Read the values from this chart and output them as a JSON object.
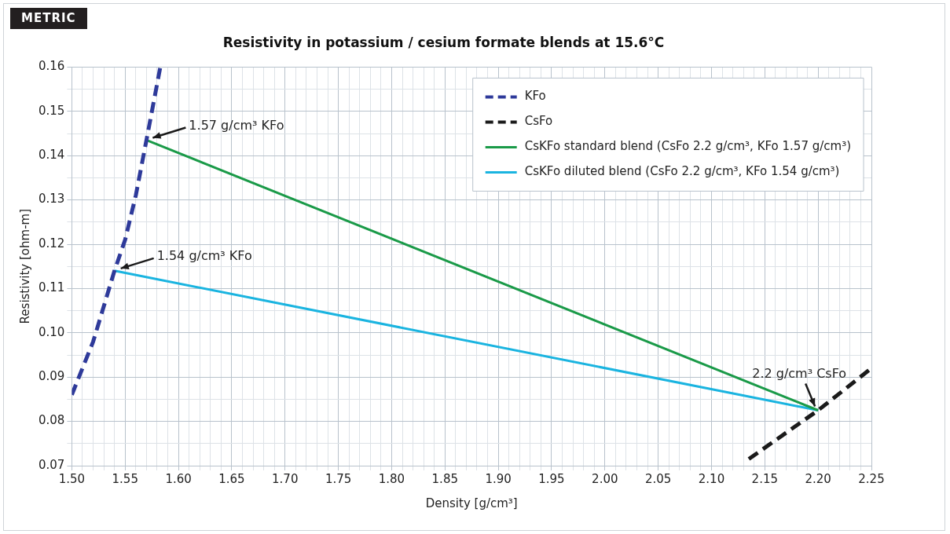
{
  "chart_data": {
    "type": "line",
    "title": "Resistivity in potassium / cesium formate blends at 15.6°C",
    "xlabel": "Density [g/cm³]",
    "ylabel": "Resistivity [ohm-m]",
    "annotations": [
      "METRIC",
      {
        "text": "1.57 g/cm³ KFo",
        "x": 1.57,
        "y": 0.1435
      },
      {
        "text": "1.54 g/cm³ KFo",
        "x": 1.54,
        "y": 0.114
      },
      {
        "text": "2.2 g/cm³ CsFo",
        "x": 2.2,
        "y": 0.0825
      }
    ],
    "series": [
      {
        "name": "KFo",
        "color": "#2e3a9a",
        "line_style": "dashed",
        "x": [
          1.5,
          1.52,
          1.54,
          1.55,
          1.56,
          1.57,
          1.583
        ],
        "values": [
          0.086,
          0.098,
          0.114,
          0.121,
          0.131,
          0.1435,
          0.16
        ]
      },
      {
        "name": "CsFo",
        "color": "#1a1a1a",
        "line_style": "dashed",
        "x": [
          2.135,
          2.2,
          2.25
        ],
        "values": [
          0.0715,
          0.0825,
          0.092
        ]
      },
      {
        "name": "CsKFo standard blend (CsFo 2.2 g/cm³, KFo 1.57 g/cm³)",
        "color": "#1a9a48",
        "line_style": "solid",
        "x": [
          1.57,
          2.2
        ],
        "values": [
          0.1435,
          0.0825
        ]
      },
      {
        "name": "CsKFo diluted blend (CsFo 2.2 g/cm³, KFo 1.54 g/cm³)",
        "color": "#1ab4e0",
        "line_style": "solid",
        "x": [
          1.54,
          2.2
        ],
        "values": [
          0.114,
          0.0825
        ]
      }
    ],
    "xlim": [
      1.5,
      2.25
    ],
    "xticks": [
      {
        "value": 1.5,
        "label": "1.50"
      },
      {
        "value": 1.51,
        "label": null
      },
      {
        "value": 1.52,
        "label": null
      },
      {
        "value": 1.53,
        "label": null
      },
      {
        "value": 1.54,
        "label": null
      },
      1.55,
      {
        "value": 1.56,
        "label": null
      },
      {
        "value": 1.57,
        "label": null
      },
      {
        "value": 1.58,
        "label": null
      },
      {
        "value": 1.59,
        "label": null
      },
      {
        "value": 1.6,
        "label": "1.60"
      },
      {
        "value": 1.61,
        "label": null
      },
      {
        "value": 1.62,
        "label": null
      },
      {
        "value": 1.63,
        "label": null
      },
      {
        "value": 1.64,
        "label": null
      },
      1.65,
      {
        "value": 1.66,
        "label": null
      },
      {
        "value": 1.67,
        "label": null
      },
      {
        "value": 1.68,
        "label": null
      },
      {
        "value": 1.69,
        "label": null
      },
      {
        "value": 1.7,
        "label": "1.70"
      },
      {
        "value": 1.71,
        "label": null
      },
      {
        "value": 1.72,
        "label": null
      },
      {
        "value": 1.73,
        "label": null
      },
      {
        "value": 1.74,
        "label": null
      },
      1.75,
      {
        "value": 1.76,
        "label": null
      },
      {
        "value": 1.77,
        "label": null
      },
      {
        "value": 1.78,
        "label": null
      },
      {
        "value": 1.79,
        "label": null
      },
      {
        "value": 1.8,
        "label": "1.80"
      },
      {
        "value": 1.81,
        "label": null
      },
      {
        "value": 1.82,
        "label": null
      },
      {
        "value": 1.83,
        "label": null
      },
      {
        "value": 1.84,
        "label": null
      },
      1.85,
      {
        "value": 1.86,
        "label": null
      },
      {
        "value": 1.87,
        "label": null
      },
      {
        "value": 1.88,
        "label": null
      },
      {
        "value": 1.89,
        "label": null
      },
      {
        "value": 1.9,
        "label": "1.90"
      },
      {
        "value": 1.91,
        "label": null
      },
      {
        "value": 1.92,
        "label": null
      },
      {
        "value": 1.93,
        "label": null
      },
      {
        "value": 1.94,
        "label": null
      },
      1.95,
      {
        "value": 1.96,
        "label": null
      },
      {
        "value": 1.97,
        "label": null
      },
      {
        "value": 1.98,
        "label": null
      },
      {
        "value": 1.99,
        "label": null
      },
      {
        "value": 2,
        "label": "2.00"
      },
      {
        "value": 2.01,
        "label": null
      },
      {
        "value": 2.02,
        "label": null
      },
      {
        "value": 2.03,
        "label": null
      },
      {
        "value": 2.04,
        "label": null
      },
      2.05,
      {
        "value": 2.06,
        "label": null
      },
      {
        "value": 2.07,
        "label": null
      },
      {
        "value": 2.08,
        "label": null
      },
      {
        "value": 2.09,
        "label": null
      },
      {
        "value": 2.1,
        "label": "2.10"
      },
      {
        "value": 2.11,
        "label": null
      },
      {
        "value": 2.12,
        "label": null
      },
      {
        "value": 2.13,
        "label": null
      },
      {
        "value": 2.14,
        "label": null
      },
      2.15,
      {
        "value": 2.16,
        "label": null
      },
      {
        "value": 2.17,
        "label": null
      },
      {
        "value": 2.18,
        "label": null
      },
      {
        "value": 2.19,
        "label": null
      },
      {
        "value": 2.2,
        "label": "2.20"
      },
      {
        "value": 2.21,
        "label": null
      },
      {
        "value": 2.22,
        "label": null
      },
      {
        "value": 2.23,
        "label": null
      },
      {
        "value": 2.24,
        "label": null
      },
      2.25
    ],
    "ylim": [
      0.07,
      0.16
    ],
    "yticks": [
      0.07,
      {
        "value": 0.075,
        "label": null
      },
      0.08,
      {
        "value": 0.085,
        "label": null
      },
      0.09,
      {
        "value": 0.095,
        "label": null
      },
      {
        "value": 0.1,
        "label": "0.10"
      },
      {
        "value": 0.105,
        "label": null
      },
      0.11,
      {
        "value": 0.115,
        "label": null
      },
      0.12,
      {
        "value": 0.125,
        "label": null
      },
      0.13,
      {
        "value": 0.135,
        "label": null
      },
      0.14,
      {
        "value": 0.145,
        "label": null
      },
      0.15,
      {
        "value": 0.155,
        "label": null
      },
      0.16
    ],
    "grid": true,
    "legend": "top right",
    "marker": "none"
  }
}
